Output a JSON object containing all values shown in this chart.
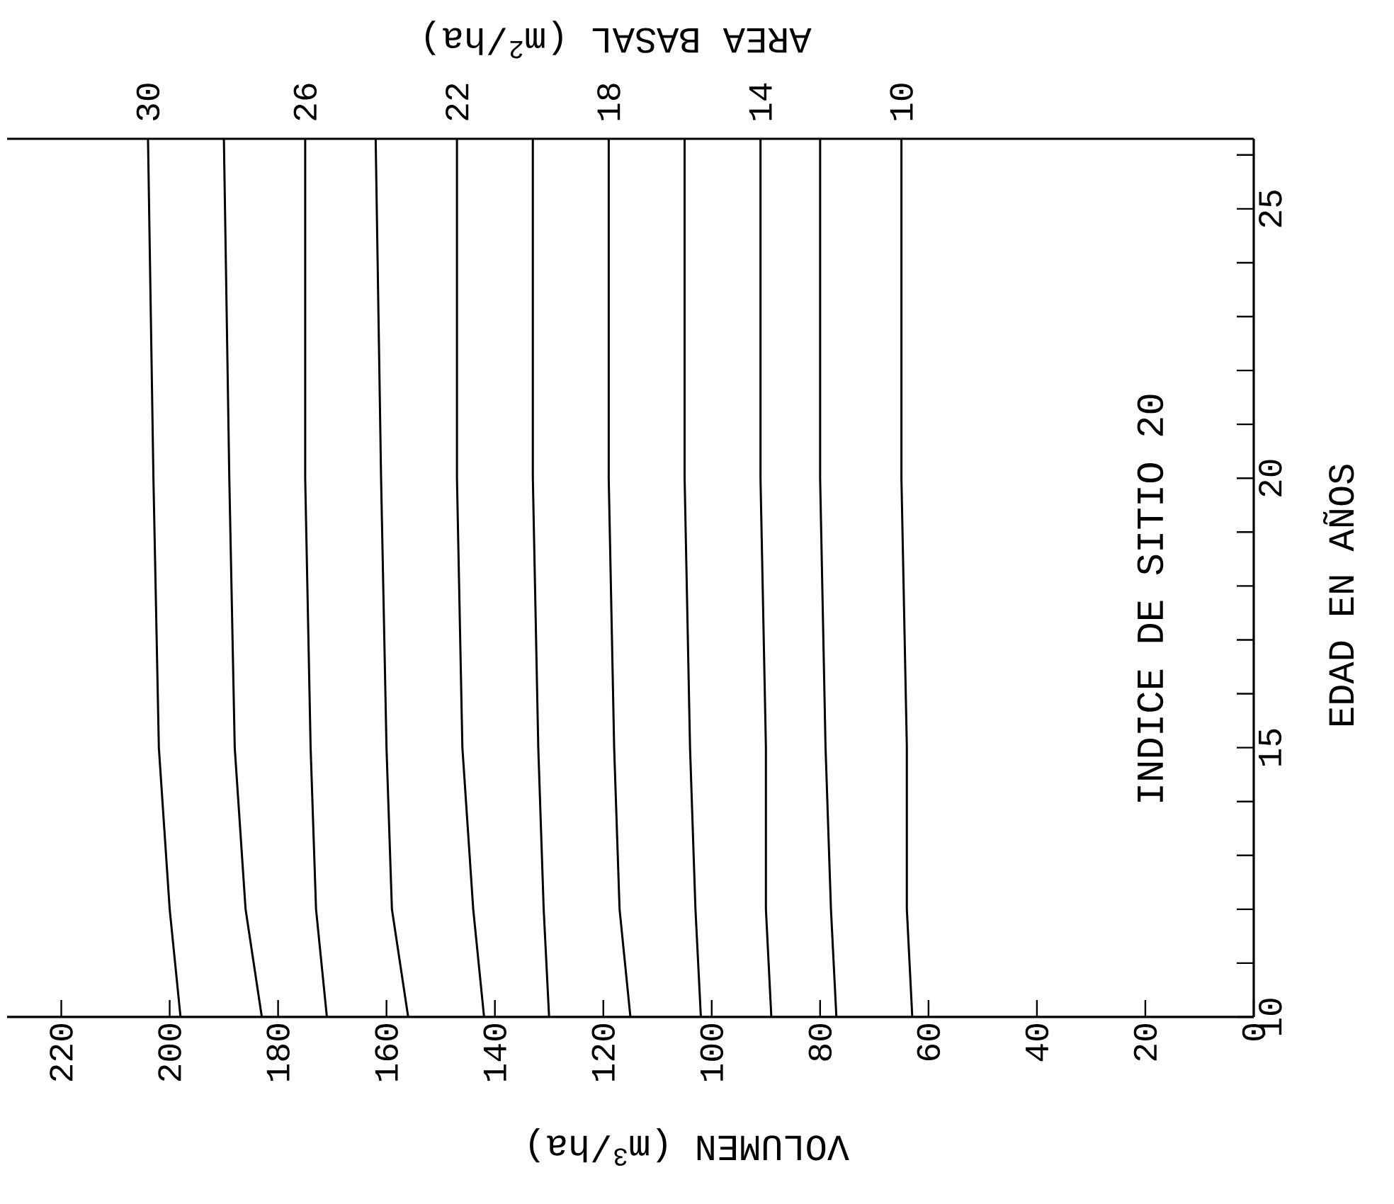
{
  "chart_data": {
    "type": "line",
    "xlabel": "VOLUMEN  (m$^{3}$/ha)",
    "ylabel": "EDAD EN AÑOS",
    "legend_title": "AREA BASAL  (m$^{2}$/ha)",
    "annotations": [
      "INDICE DE SITIO 20"
    ],
    "xlim": [
      230,
      0
    ],
    "ylim": [
      10,
      26.3
    ],
    "xticks": [
      220,
      200,
      180,
      160,
      140,
      120,
      100,
      80,
      60,
      40,
      20,
      0
    ],
    "yticks": [
      10,
      {
        "value": 11,
        "label": null
      },
      {
        "value": 12,
        "label": null
      },
      {
        "value": 13,
        "label": null
      },
      {
        "value": 14,
        "label": null
      },
      15,
      {
        "value": 16,
        "label": null
      },
      {
        "value": 17,
        "label": null
      },
      {
        "value": 18,
        "label": null
      },
      {
        "value": 19,
        "label": null
      },
      20,
      {
        "value": 21,
        "label": null
      },
      {
        "value": 22,
        "label": null
      },
      {
        "value": 23,
        "label": null
      },
      {
        "value": 24,
        "label": null
      },
      25,
      {
        "value": 26,
        "label": null
      }
    ],
    "series": [
      {
        "name": "30",
        "color": "#000000",
        "x": [
          198,
          200,
          202,
          203,
          204
        ],
        "values": [
          10,
          12,
          15,
          20,
          26.3
        ]
      },
      {
        "color": "#000000",
        "x": [
          183,
          186,
          188,
          189,
          190
        ],
        "values": [
          10,
          12,
          15,
          20,
          26.3
        ]
      },
      {
        "name": "26",
        "color": "#000000",
        "x": [
          171,
          173,
          174,
          175,
          175
        ],
        "values": [
          10,
          12,
          15,
          20,
          26.3
        ]
      },
      {
        "color": "#000000",
        "x": [
          156,
          159,
          160,
          161,
          162
        ],
        "values": [
          10,
          12,
          15,
          20,
          26.3
        ]
      },
      {
        "name": "22",
        "color": "#000000",
        "x": [
          142,
          144,
          146,
          147,
          147
        ],
        "values": [
          10,
          12,
          15,
          20,
          26.3
        ]
      },
      {
        "color": "#000000",
        "x": [
          130,
          131,
          132,
          133,
          133
        ],
        "values": [
          10,
          12,
          15,
          20,
          26.3
        ]
      },
      {
        "name": "18",
        "color": "#000000",
        "x": [
          115,
          117,
          118,
          119,
          119
        ],
        "values": [
          10,
          12,
          15,
          20,
          26.3
        ]
      },
      {
        "color": "#000000",
        "x": [
          102,
          103,
          104,
          105,
          105
        ],
        "values": [
          10,
          12,
          15,
          20,
          26.3
        ]
      },
      {
        "name": "14",
        "color": "#000000",
        "x": [
          89,
          90,
          90,
          91,
          91
        ],
        "values": [
          10,
          12,
          15,
          20,
          26.3
        ]
      },
      {
        "color": "#000000",
        "x": [
          77,
          78,
          79,
          80,
          80
        ],
        "values": [
          10,
          12,
          15,
          20,
          26.3
        ]
      },
      {
        "name": "10",
        "color": "#000000",
        "x": [
          63,
          64,
          64,
          65,
          65
        ],
        "values": [
          10,
          12,
          15,
          20,
          26.3
        ]
      }
    ]
  }
}
